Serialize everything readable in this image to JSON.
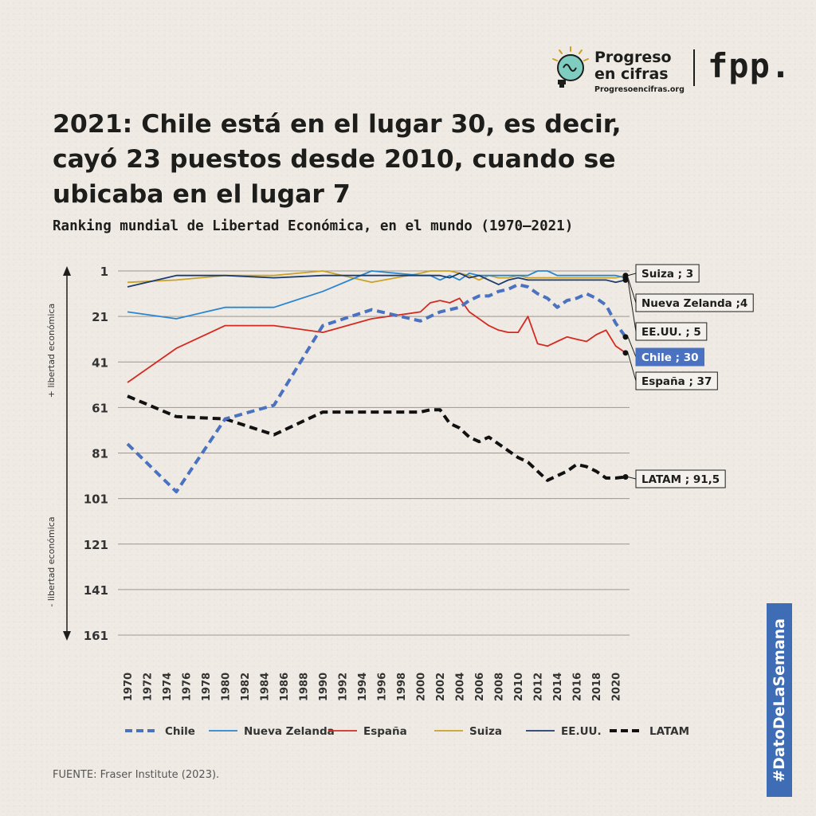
{
  "brand": {
    "name_line1": "Progreso",
    "name_line2": "en cifras",
    "url": "Progresoencifras.org",
    "partner": "fpp."
  },
  "title": "2021: Chile está en el lugar 30, es decir, cayó 23 puestos desde 2010, cuando se ubicaba en el lugar 7",
  "subtitle": "Ranking mundial de Libertad Económica, en el mundo (1970–2021)",
  "source": "FUENTE: Fraser Institute (2023).",
  "hashtag": "#DatoDeLaSemana",
  "colors": {
    "background": "#efebe4",
    "chile": "#4a72c0",
    "nueva_zelanda": "#2a86d1",
    "espana": "#d42a22",
    "suiza": "#c9a227",
    "eeuu": "#1d3b6e",
    "latam": "#111111",
    "hashtag_bg": "#3e6db5"
  },
  "chart_data": {
    "type": "line",
    "y_axis_inverted": true,
    "ylim": [
      1,
      161
    ],
    "xlim": [
      1970,
      2021
    ],
    "y_ticks": [
      "1",
      "21",
      "41",
      "61",
      "81",
      "101",
      "121",
      "141",
      "161"
    ],
    "x_ticks": [
      "1970",
      "1972",
      "1974",
      "1976",
      "1978",
      "1980",
      "1982",
      "1984",
      "1986",
      "1988",
      "1990",
      "1992",
      "1994",
      "1996",
      "1998",
      "2000",
      "2002",
      "2004",
      "2006",
      "2008",
      "2010",
      "2012",
      "2014",
      "2016",
      "2018",
      "2020"
    ],
    "y_axis_top_label": "+ libertad económica",
    "y_axis_bottom_label": "- libertad económica",
    "grid": "horizontal",
    "legend_position": "bottom",
    "series": [
      {
        "name": "Chile",
        "key": "chile",
        "style": "dashed",
        "x": [
          1970,
          1975,
          1980,
          1985,
          1990,
          1995,
          2000,
          2001,
          2002,
          2003,
          2004,
          2005,
          2006,
          2007,
          2008,
          2009,
          2010,
          2011,
          2012,
          2013,
          2014,
          2015,
          2016,
          2017,
          2018,
          2019,
          2020,
          2021
        ],
        "y": [
          77,
          98,
          66,
          60,
          25,
          18,
          23,
          21,
          19,
          18,
          17,
          14,
          12,
          12,
          10,
          9,
          7,
          8,
          11,
          13,
          17,
          14,
          13,
          11,
          13,
          16,
          24,
          30
        ],
        "end_label": "Chile ; 30"
      },
      {
        "name": "Nueva Zelanda",
        "key": "nueva_zelanda",
        "style": "solid",
        "x": [
          1970,
          1975,
          1980,
          1985,
          1990,
          1995,
          2000,
          2001,
          2002,
          2003,
          2004,
          2005,
          2006,
          2007,
          2008,
          2009,
          2010,
          2011,
          2012,
          2013,
          2014,
          2015,
          2016,
          2017,
          2018,
          2019,
          2020,
          2021
        ],
        "y": [
          19,
          22,
          17,
          17,
          10,
          1,
          3,
          3,
          5,
          3,
          5,
          2,
          3,
          3,
          3,
          3,
          3,
          3,
          1,
          1,
          3,
          3,
          3,
          3,
          3,
          3,
          3,
          4
        ],
        "end_label": "Nueva Zelanda ;4"
      },
      {
        "name": "España",
        "key": "espana",
        "style": "solid",
        "x": [
          1970,
          1975,
          1980,
          1985,
          1990,
          1995,
          2000,
          2001,
          2002,
          2003,
          2004,
          2005,
          2006,
          2007,
          2008,
          2009,
          2010,
          2011,
          2012,
          2013,
          2014,
          2015,
          2016,
          2017,
          2018,
          2019,
          2020,
          2021
        ],
        "y": [
          50,
          35,
          25,
          25,
          28,
          22,
          19,
          15,
          14,
          15,
          13,
          19,
          22,
          25,
          27,
          28,
          28,
          21,
          33,
          34,
          32,
          30,
          31,
          32,
          29,
          27,
          34,
          37
        ],
        "end_label": "España ; 37"
      },
      {
        "name": "Suiza",
        "key": "suiza",
        "style": "solid",
        "x": [
          1970,
          1975,
          1980,
          1985,
          1990,
          1995,
          2000,
          2001,
          2002,
          2003,
          2004,
          2005,
          2006,
          2007,
          2008,
          2009,
          2010,
          2011,
          2012,
          2013,
          2014,
          2015,
          2016,
          2017,
          2018,
          2019,
          2020,
          2021
        ],
        "y": [
          6,
          5,
          3,
          3,
          1,
          6,
          2,
          1,
          1,
          1,
          2,
          3,
          5,
          3,
          4,
          4,
          3,
          4,
          4,
          4,
          4,
          4,
          4,
          4,
          4,
          4,
          4,
          3
        ],
        "end_label": "Suiza ; 3"
      },
      {
        "name": "EE.UU.",
        "key": "eeuu",
        "style": "solid",
        "x": [
          1970,
          1975,
          1980,
          1985,
          1990,
          1995,
          2000,
          2001,
          2002,
          2003,
          2004,
          2005,
          2006,
          2007,
          2008,
          2009,
          2010,
          2011,
          2012,
          2013,
          2014,
          2015,
          2016,
          2017,
          2018,
          2019,
          2020,
          2021
        ],
        "y": [
          8,
          3,
          3,
          4,
          3,
          3,
          3,
          3,
          3,
          4,
          2,
          4,
          3,
          5,
          7,
          5,
          4,
          5,
          5,
          5,
          5,
          5,
          5,
          5,
          5,
          5,
          6,
          5
        ],
        "end_label": "EE.UU. ; 5"
      },
      {
        "name": "LATAM",
        "key": "latam",
        "style": "dashed",
        "x": [
          1970,
          1975,
          1980,
          1985,
          1990,
          1995,
          2000,
          2001,
          2002,
          2003,
          2004,
          2005,
          2006,
          2007,
          2008,
          2009,
          2010,
          2011,
          2012,
          2013,
          2014,
          2015,
          2016,
          2017,
          2018,
          2019,
          2020,
          2021
        ],
        "y": [
          56,
          65,
          66,
          73,
          63,
          63,
          63,
          62,
          62,
          68,
          70,
          74,
          76,
          74,
          77,
          80,
          83,
          85,
          89,
          93,
          91,
          89,
          86,
          87,
          89,
          92,
          92,
          91.5
        ],
        "end_label": "LATAM ; 91,5"
      }
    ]
  }
}
